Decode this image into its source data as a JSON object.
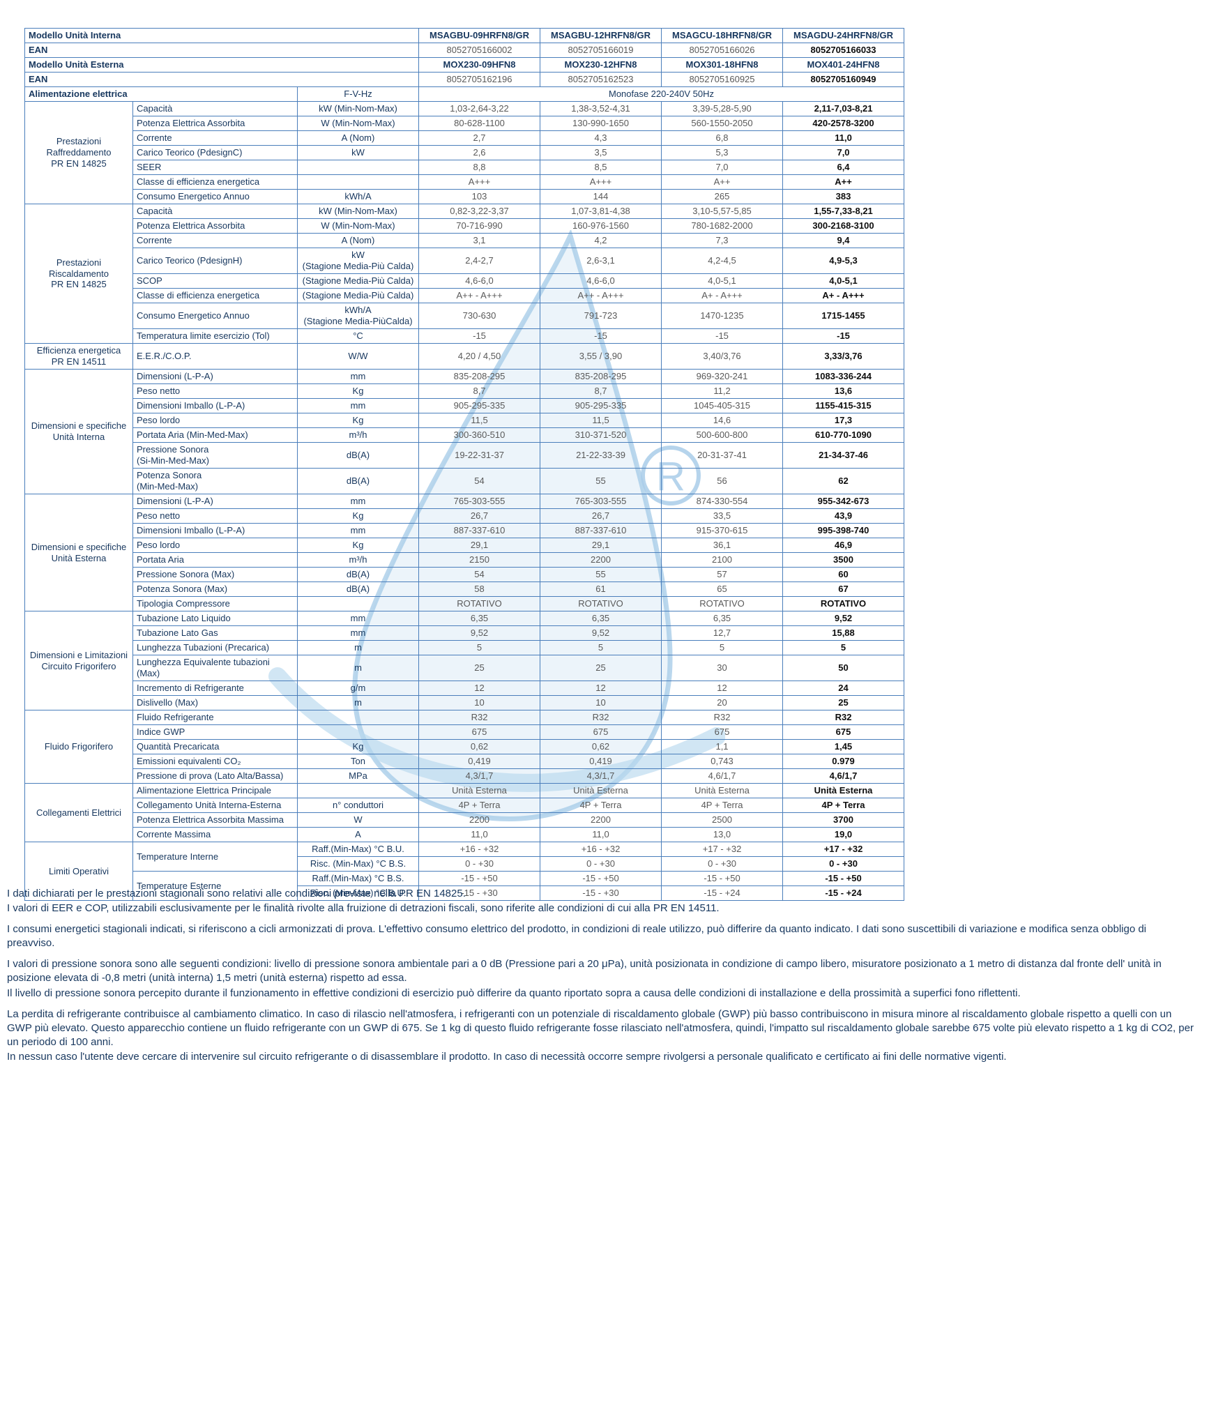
{
  "table": {
    "header_rows": [
      {
        "label": "Modello Unità Interna",
        "values": [
          "MSAGBU-09HRFN8/GR",
          "MSAGBU-12HRFN8/GR",
          "MSAGCU-18HRFN8/GR",
          "MSAGDU-24HRFN8/GR"
        ]
      },
      {
        "label": "EAN",
        "values": [
          "8052705166002",
          "8052705166019",
          "8052705166026",
          "8052705166033"
        ]
      },
      {
        "label": "Modello Unità Esterna",
        "values": [
          "MOX230-09HFN8",
          "MOX230-12HFN8",
          "MOX301-18HFN8",
          "MOX401-24HFN8"
        ]
      },
      {
        "label": "EAN",
        "values": [
          "8052705162196",
          "8052705162523",
          "8052705160925",
          "8052705160949"
        ]
      }
    ],
    "power_row": {
      "label": "Alimentazione elettrica",
      "unit": "F-V-Hz",
      "value": "Monofase 220-240V 50Hz"
    },
    "sections": [
      {
        "category": "Prestazioni\nRaffreddamento\nPR EN 14825",
        "rows": [
          {
            "param": "Capacità",
            "unit": "kW (Min-Nom-Max)",
            "values": [
              "1,03-2,64-3,22",
              "1,38-3,52-4,31",
              "3,39-5,28-5,90",
              "2,11-7,03-8,21"
            ]
          },
          {
            "param": "Potenza Elettrica Assorbita",
            "unit": "W (Min-Nom-Max)",
            "values": [
              "80-628-1100",
              "130-990-1650",
              "560-1550-2050",
              "420-2578-3200"
            ]
          },
          {
            "param": "Corrente",
            "unit": "A (Nom)",
            "values": [
              "2,7",
              "4,3",
              "6,8",
              "11,0"
            ]
          },
          {
            "param": "Carico Teorico (PdesignC)",
            "unit": "kW",
            "values": [
              "2,6",
              "3,5",
              "5,3",
              "7,0"
            ]
          },
          {
            "param": "SEER",
            "unit": "",
            "values": [
              "8,8",
              "8,5",
              "7,0",
              "6,4"
            ]
          },
          {
            "param": "Classe di efficienza energetica",
            "unit": "",
            "values": [
              "A+++",
              "A+++",
              "A++",
              "A++"
            ]
          },
          {
            "param": "Consumo Energetico Annuo",
            "unit": "kWh/A",
            "values": [
              "103",
              "144",
              "265",
              "383"
            ]
          }
        ]
      },
      {
        "category": "Prestazioni\nRiscaldamento\nPR EN 14825",
        "rows": [
          {
            "param": "Capacità",
            "unit": "kW (Min-Nom-Max)",
            "values": [
              "0,82-3,22-3,37",
              "1,07-3,81-4,38",
              "3,10-5,57-5,85",
              "1,55-7,33-8,21"
            ]
          },
          {
            "param": "Potenza Elettrica Assorbita",
            "unit": "W (Min-Nom-Max)",
            "values": [
              "70-716-990",
              "160-976-1560",
              "780-1682-2000",
              "300-2168-3100"
            ]
          },
          {
            "param": "Corrente",
            "unit": "A (Nom)",
            "values": [
              "3,1",
              "4,2",
              "7,3",
              "9,4"
            ]
          },
          {
            "param": "Carico Teorico (PdesignH)",
            "unit": "kW\n(Stagione Media-Più Calda)",
            "values": [
              "2,4-2,7",
              "2,6-3,1",
              "4,2-4,5",
              "4,9-5,3"
            ],
            "tall": true
          },
          {
            "param": "SCOP",
            "unit": "(Stagione Media-Più Calda)",
            "values": [
              "4,6-6,0",
              "4,6-6,0",
              "4,0-5,1",
              "4,0-5,1"
            ]
          },
          {
            "param": "Classe di efficienza energetica",
            "unit": "(Stagione Media-Più Calda)",
            "values": [
              "A++ - A+++",
              "A++ - A+++",
              "A+ - A+++",
              "A+ - A+++"
            ]
          },
          {
            "param": "Consumo Energetico Annuo",
            "unit": "kWh/A\n(Stagione Media-PiùCalda)",
            "values": [
              "730-630",
              "791-723",
              "1470-1235",
              "1715-1455"
            ],
            "tall": true
          },
          {
            "param": "Temperatura limite esercizio (Tol)",
            "unit": "°C",
            "values": [
              "-15",
              "-15",
              "-15",
              "-15"
            ]
          }
        ]
      },
      {
        "category": "Efficienza energetica\nPR EN 14511",
        "rows": [
          {
            "param": "E.E.R./C.O.P.",
            "unit": "W/W",
            "values": [
              "4,20 / 4,50",
              "3,55 / 3,90",
              "3,40/3,76",
              "3,33/3,76"
            ],
            "tall": true
          }
        ]
      },
      {
        "category": "Dimensioni e specifiche\nUnità Interna",
        "rows": [
          {
            "param": "Dimensioni (L-P-A)",
            "unit": "mm",
            "values": [
              "835-208-295",
              "835-208-295",
              "969-320-241",
              "1083-336-244"
            ]
          },
          {
            "param": "Peso netto",
            "unit": "Kg",
            "values": [
              "8,7",
              "8,7",
              "11,2",
              "13,6"
            ]
          },
          {
            "param": "Dimensioni Imballo (L-P-A)",
            "unit": "mm",
            "values": [
              "905-295-335",
              "905-295-335",
              "1045-405-315",
              "1155-415-315"
            ]
          },
          {
            "param": "Peso lordo",
            "unit": "Kg",
            "values": [
              "11,5",
              "11,5",
              "14,6",
              "17,3"
            ]
          },
          {
            "param": "Portata Aria (Min-Med-Max)",
            "unit": "m³/h",
            "values": [
              "300-360-510",
              "310-371-520",
              "500-600-800",
              "610-770-1090"
            ]
          },
          {
            "param": "Pressione Sonora\n(Si-Min-Med-Max)",
            "unit": "dB(A)",
            "values": [
              "19-22-31-37",
              "21-22-33-39",
              "20-31-37-41",
              "21-34-37-46"
            ],
            "tall": true
          },
          {
            "param": "Potenza Sonora\n(Min-Med-Max)",
            "unit": "dB(A)",
            "values": [
              "54",
              "55",
              "56",
              "62"
            ],
            "tall": true
          }
        ]
      },
      {
        "category": "Dimensioni e specifiche\nUnità Esterna",
        "rows": [
          {
            "param": "Dimensioni (L-P-A)",
            "unit": "mm",
            "values": [
              "765-303-555",
              "765-303-555",
              "874-330-554",
              "955-342-673"
            ]
          },
          {
            "param": "Peso netto",
            "unit": "Kg",
            "values": [
              "26,7",
              "26,7",
              "33,5",
              "43,9"
            ]
          },
          {
            "param": "Dimensioni Imballo (L-P-A)",
            "unit": "mm",
            "values": [
              "887-337-610",
              "887-337-610",
              "915-370-615",
              "995-398-740"
            ]
          },
          {
            "param": "Peso lordo",
            "unit": "Kg",
            "values": [
              "29,1",
              "29,1",
              "36,1",
              "46,9"
            ]
          },
          {
            "param": "Portata Aria",
            "unit": "m³/h",
            "values": [
              "2150",
              "2200",
              "2100",
              "3500"
            ]
          },
          {
            "param": "Pressione Sonora (Max)",
            "unit": "dB(A)",
            "values": [
              "54",
              "55",
              "57",
              "60"
            ]
          },
          {
            "param": "Potenza Sonora (Max)",
            "unit": "dB(A)",
            "values": [
              "58",
              "61",
              "65",
              "67"
            ]
          },
          {
            "param": "Tipologia Compressore",
            "unit": "",
            "values": [
              "ROTATIVO",
              "ROTATIVO",
              "ROTATIVO",
              "ROTATIVO"
            ]
          }
        ]
      },
      {
        "category": "Dimensioni e Limitazioni\nCircuito Frigorifero",
        "rows": [
          {
            "param": "Tubazione Lato Liquido",
            "unit": "mm",
            "values": [
              "6,35",
              "6,35",
              "6,35",
              "9,52"
            ]
          },
          {
            "param": "Tubazione Lato Gas",
            "unit": "mm",
            "values": [
              "9,52",
              "9,52",
              "12,7",
              "15,88"
            ]
          },
          {
            "param": "Lunghezza Tubazioni (Precarica)",
            "unit": "m",
            "values": [
              "5",
              "5",
              "5",
              "5"
            ]
          },
          {
            "param": "Lunghezza Equivalente tubazioni (Max)",
            "unit": "m",
            "values": [
              "25",
              "25",
              "30",
              "50"
            ],
            "tall": true
          },
          {
            "param": "Incremento di Refrigerante",
            "unit": "g/m",
            "values": [
              "12",
              "12",
              "12",
              "24"
            ]
          },
          {
            "param": "Dislivello (Max)",
            "unit": "m",
            "values": [
              "10",
              "10",
              "20",
              "25"
            ]
          }
        ]
      },
      {
        "category": "Fluido Frigorifero",
        "rows": [
          {
            "param": "Fluido Refrigerante",
            "unit": "",
            "values": [
              "R32",
              "R32",
              "R32",
              "R32"
            ]
          },
          {
            "param": "Indice GWP",
            "unit": "",
            "values": [
              "675",
              "675",
              "675",
              "675"
            ]
          },
          {
            "param": "Quantità Precaricata",
            "unit": "Kg",
            "values": [
              "0,62",
              "0,62",
              "1,1",
              "1,45"
            ]
          },
          {
            "param": "Emissioni equivalenti CO₂",
            "unit": "Ton",
            "values": [
              "0,419",
              "0,419",
              "0,743",
              "0.979"
            ]
          },
          {
            "param": "Pressione di prova (Lato Alta/Bassa)",
            "unit": "MPa",
            "values": [
              "4,3/1,7",
              "4,3/1,7",
              "4,6/1,7",
              "4,6/1,7"
            ]
          }
        ]
      },
      {
        "category": "Collegamenti Elettrici",
        "rows": [
          {
            "param": "Alimentazione Elettrica Principale",
            "unit": "",
            "values": [
              "Unità Esterna",
              "Unità Esterna",
              "Unità Esterna",
              "Unità Esterna"
            ]
          },
          {
            "param": "Collegamento Unità Interna-Esterna",
            "unit": "n° conduttori",
            "values": [
              "4P + Terra",
              "4P + Terra",
              "4P + Terra",
              "4P + Terra"
            ]
          },
          {
            "param": "Potenza Elettrica Assorbita Massima",
            "unit": "W",
            "values": [
              "2200",
              "2200",
              "2500",
              "3700"
            ]
          },
          {
            "param": "Corrente Massima",
            "unit": "A",
            "values": [
              "11,0",
              "11,0",
              "13,0",
              "19,0"
            ]
          }
        ]
      },
      {
        "category": "Limiti Operativi",
        "rows": [
          {
            "param": "Temperature Interne",
            "param_rowspan": 2,
            "unit": "Raff.(Min-Max) °C B.U.",
            "values": [
              "+16 - +32",
              "+16 - +32",
              "+17 - +32",
              "+17 - +32"
            ]
          },
          {
            "unit": "Risc. (Min-Max) °C B.S.",
            "values": [
              "0 - +30",
              "0 - +30",
              "0 - +30",
              "0 - +30"
            ]
          },
          {
            "param": "Temperature Esterne",
            "param_rowspan": 2,
            "unit": "Raff.(Min-Max) °C B.S.",
            "values": [
              "-15 - +50",
              "-15 - +50",
              "-15 - +50",
              "-15 - +50"
            ]
          },
          {
            "unit": "Risc. (Min-Max) °C B.U.",
            "values": [
              "-15 - +30",
              "-15 - +30",
              "-15 - +24",
              "-15 - +24"
            ]
          }
        ]
      }
    ]
  },
  "watermark": {
    "symbol": "R"
  },
  "footnotes": [
    "I dati dichiarati per le prestazioni stagionali sono relativi alle condizioni previste nella PR EN 14825.",
    "I valori di EER e COP, utilizzabili esclusivamente per le finalità rivolte alla fruizione di detrazioni fiscali, sono riferite alle condizioni di cui alla PR EN 14511.",
    "I consumi energetici stagionali indicati, si riferiscono a cicli armonizzati di prova. L'effettivo consumo elettrico del prodotto, in condizioni di reale utilizzo, può differire da quanto indicato. I dati sono suscettibili di variazione e modifica senza obbligo di preavviso.",
    "I valori di pressione sonora sono alle seguenti condizioni: livello di pressione sonora ambientale pari a 0 dB (Pressione pari a 20 μPa), unità posizionata in condizione di campo libero, misuratore posizionato a 1 metro di distanza dal fronte dell' unità in posizione elevata di -0,8 metri (unità interna) 1,5 metri (unità esterna) rispetto ad essa.",
    "Il livello di pressione sonora percepito durante il funzionamento in effettive condizioni di esercizio può differire da quanto riportato sopra a causa delle condizioni di installazione e della prossimità a superfici fono riflettenti.",
    "La perdita di refrigerante contribuisce al cambiamento climatico. In caso di rilascio nell'atmosfera, i refrigeranti con un potenziale di riscaldamento globale (GWP) più basso contribuiscono in misura minore al riscaldamento globale rispetto a quelli con un GWP più elevato. Questo apparecchio contiene un fluido refrigerante con un GWP di 675. Se 1 kg di questo fluido refrigerante fosse rilasciato nell'atmosfera, quindi, l'impatto sul riscaldamento globale sarebbe 675 volte più elevato rispetto a 1 kg di CO2, per un periodo di 100 anni.",
    "In nessun caso l'utente deve cercare di intervenire sul circuito refrigerante o di disassemblare il prodotto. In caso di necessità occorre sempre rivolgersi a personale qualificato e certificato ai fini delle normative vigenti."
  ]
}
